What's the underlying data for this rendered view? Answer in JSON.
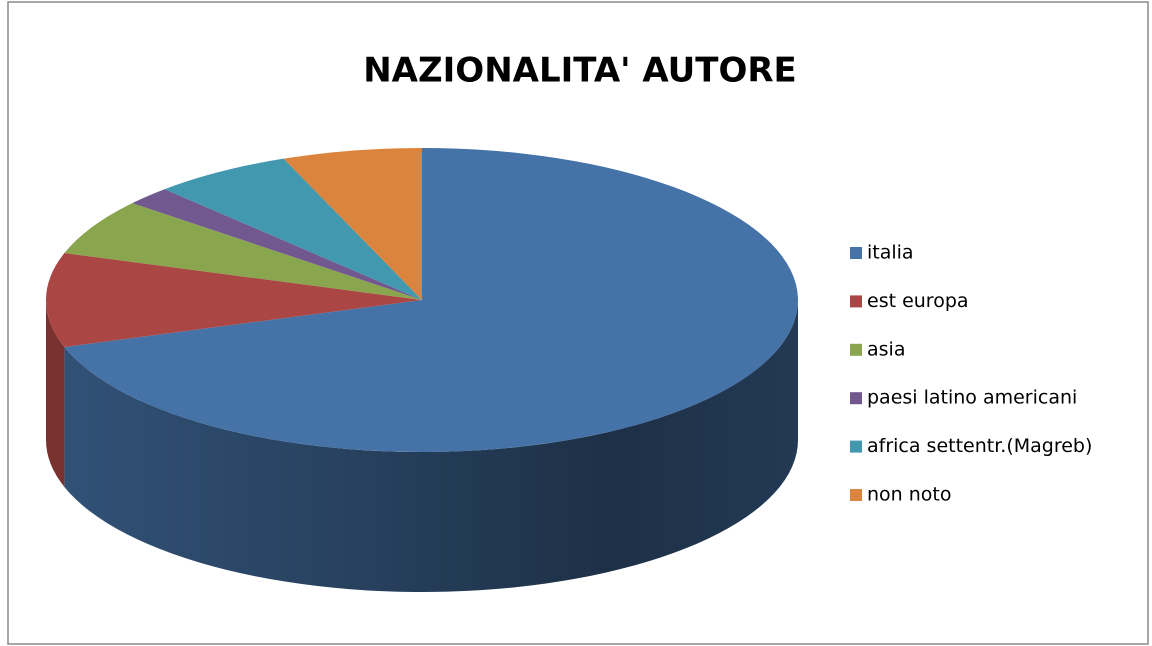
{
  "chart_data": {
    "type": "pie",
    "title": "NAZIONALITA' AUTORE",
    "categories": [
      "italia",
      "est europa",
      "asia",
      "paesi latino americani",
      "africa settentr.(Magreb)",
      "non noto"
    ],
    "values": [
      70,
      10,
      6,
      2,
      6,
      6
    ],
    "colors": [
      "#4572a7",
      "#aa4643",
      "#89a54e",
      "#71588f",
      "#4198af",
      "#db843d"
    ],
    "legend": "right"
  }
}
